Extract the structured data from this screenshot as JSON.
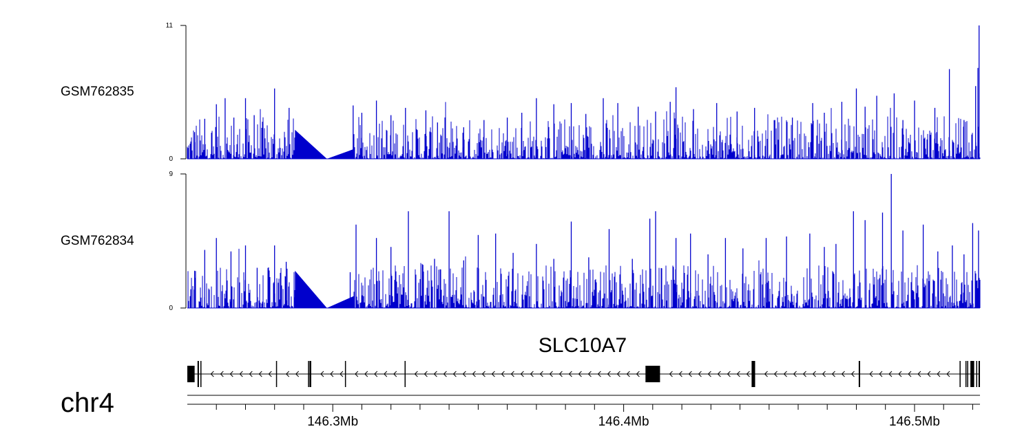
{
  "chart_data": {
    "type": "area",
    "title": "",
    "xlabel": "",
    "chromosome": "chr4",
    "xlim": [
      146.25,
      146.5225
    ],
    "x_unit": "Mb",
    "x_ticks": [
      {
        "value": 146.3,
        "label": "146.3Mb"
      },
      {
        "value": 146.4,
        "label": "146.4Mb"
      },
      {
        "value": 146.5,
        "label": "146.5Mb"
      }
    ],
    "x_minor_ticks": [
      146.26,
      146.27,
      146.28,
      146.29,
      146.31,
      146.32,
      146.33,
      146.34,
      146.35,
      146.36,
      146.37,
      146.38,
      146.39,
      146.41,
      146.42,
      146.43,
      146.44,
      146.45,
      146.46,
      146.47,
      146.48,
      146.49,
      146.51,
      146.52
    ],
    "color": "#0000cc",
    "tracks": [
      {
        "name": "GSM762835",
        "ylim": [
          0,
          11
        ],
        "y_ticks": [
          {
            "value": 0,
            "label": "0"
          },
          {
            "value": 11,
            "label": "11"
          }
        ],
        "peaks": [
          [
            146.2525,
            2.2
          ],
          [
            146.256,
            3.3
          ],
          [
            146.26,
            4.5
          ],
          [
            146.263,
            5.0
          ],
          [
            146.266,
            3.4
          ],
          [
            146.27,
            5.0
          ],
          [
            146.273,
            3.6
          ],
          [
            146.276,
            3.0
          ],
          [
            146.28,
            5.8
          ],
          [
            146.285,
            4.2
          ],
          [
            146.287,
            1.6
          ],
          [
            146.307,
            4.4
          ],
          [
            146.31,
            3.8
          ],
          [
            146.315,
            4.8
          ],
          [
            146.32,
            3.6
          ],
          [
            146.325,
            4.2
          ],
          [
            146.332,
            4.0
          ],
          [
            146.336,
            3.0
          ],
          [
            146.345,
            2.6
          ],
          [
            146.352,
            3.2
          ],
          [
            146.36,
            3.4
          ],
          [
            146.365,
            3.8
          ],
          [
            146.37,
            5.0
          ],
          [
            146.376,
            4.5
          ],
          [
            146.382,
            4.6
          ],
          [
            146.387,
            3.7
          ],
          [
            146.393,
            5.0
          ],
          [
            146.398,
            4.6
          ],
          [
            146.405,
            4.3
          ],
          [
            146.411,
            3.9
          ],
          [
            146.416,
            4.7
          ],
          [
            146.418,
            5.9
          ],
          [
            146.424,
            4.1
          ],
          [
            146.432,
            4.6
          ],
          [
            146.439,
            3.9
          ],
          [
            146.445,
            4.2
          ],
          [
            146.452,
            3.2
          ],
          [
            146.458,
            3.4
          ],
          [
            146.465,
            4.6
          ],
          [
            146.469,
            3.8
          ],
          [
            146.475,
            4.7
          ],
          [
            146.48,
            5.8
          ],
          [
            146.483,
            4.3
          ],
          [
            146.487,
            5.2
          ],
          [
            146.493,
            5.4
          ],
          [
            146.496,
            3.2
          ],
          [
            146.5,
            4.8
          ],
          [
            146.507,
            4.2
          ],
          [
            146.512,
            7.4
          ],
          [
            146.517,
            3.2
          ],
          [
            146.521,
            6.0
          ],
          [
            146.5218,
            7.5
          ],
          [
            146.5222,
            11.0
          ]
        ],
        "triangles": [
          {
            "x": [
              146.287,
              146.298
            ],
            "y": [
              2.4,
              0.0
            ]
          },
          {
            "x": [
              146.298,
              146.3072
            ],
            "y": [
              0.0,
              0.8
            ]
          }
        ]
      },
      {
        "name": "GSM762834",
        "ylim": [
          0,
          9
        ],
        "y_ticks": [
          {
            "value": 0,
            "label": "0"
          },
          {
            "value": 9,
            "label": "9"
          }
        ],
        "peaks": [
          [
            146.2525,
            2.5
          ],
          [
            146.256,
            3.9
          ],
          [
            146.26,
            4.7
          ],
          [
            146.265,
            3.8
          ],
          [
            146.27,
            4.2
          ],
          [
            146.274,
            2.7
          ],
          [
            146.28,
            4.2
          ],
          [
            146.284,
            3.1
          ],
          [
            146.287,
            1.2
          ],
          [
            146.306,
            2.4
          ],
          [
            146.308,
            5.6
          ],
          [
            146.315,
            4.7
          ],
          [
            146.32,
            4.1
          ],
          [
            146.326,
            6.5
          ],
          [
            146.331,
            2.9
          ],
          [
            146.335,
            3.3
          ],
          [
            146.34,
            6.5
          ],
          [
            146.345,
            3.2
          ],
          [
            146.35,
            4.9
          ],
          [
            146.356,
            5.0
          ],
          [
            146.362,
            3.7
          ],
          [
            146.37,
            4.3
          ],
          [
            146.376,
            3.3
          ],
          [
            146.382,
            5.8
          ],
          [
            146.388,
            3.4
          ],
          [
            146.395,
            5.3
          ],
          [
            146.403,
            3.3
          ],
          [
            146.409,
            6.0
          ],
          [
            146.411,
            6.5
          ],
          [
            146.418,
            4.7
          ],
          [
            146.423,
            5.0
          ],
          [
            146.429,
            3.6
          ],
          [
            146.435,
            4.7
          ],
          [
            146.441,
            4.0
          ],
          [
            146.449,
            4.7
          ],
          [
            146.456,
            4.8
          ],
          [
            146.464,
            5.0
          ],
          [
            146.469,
            4.1
          ],
          [
            146.473,
            4.3
          ],
          [
            146.479,
            6.5
          ],
          [
            146.483,
            5.9
          ],
          [
            146.489,
            6.4
          ],
          [
            146.492,
            9.0
          ],
          [
            146.496,
            5.2
          ],
          [
            146.503,
            5.6
          ],
          [
            146.508,
            3.8
          ],
          [
            146.513,
            4.2
          ],
          [
            146.517,
            3.6
          ],
          [
            146.52,
            5.7
          ],
          [
            146.522,
            5.2
          ]
        ],
        "triangles": [
          {
            "x": [
              146.287,
              146.298
            ],
            "y": [
              2.5,
              0.0
            ]
          },
          {
            "x": [
              146.298,
              146.3072
            ],
            "y": [
              0.0,
              0.8
            ]
          }
        ]
      }
    ],
    "gene": {
      "name": "SLC10A7",
      "strand": "-",
      "start": 146.25,
      "end": 146.5225,
      "exons": [
        [
          146.25,
          146.2525
        ],
        [
          146.2535,
          146.254
        ],
        [
          146.2545,
          146.2548
        ],
        [
          146.2805,
          146.2807
        ],
        [
          146.2915,
          146.2918
        ],
        [
          146.292,
          146.2926
        ],
        [
          146.3042,
          146.3044
        ],
        [
          146.3247,
          146.3249
        ],
        [
          146.4075,
          146.4125
        ],
        [
          146.444,
          146.4452
        ],
        [
          146.4808,
          146.4813
        ],
        [
          146.5155,
          146.5157
        ],
        [
          146.5175,
          146.5177
        ],
        [
          146.5181,
          146.5183
        ],
        [
          146.5192,
          146.5205
        ],
        [
          146.5212,
          146.5214
        ],
        [
          146.522,
          146.5225
        ]
      ]
    }
  }
}
